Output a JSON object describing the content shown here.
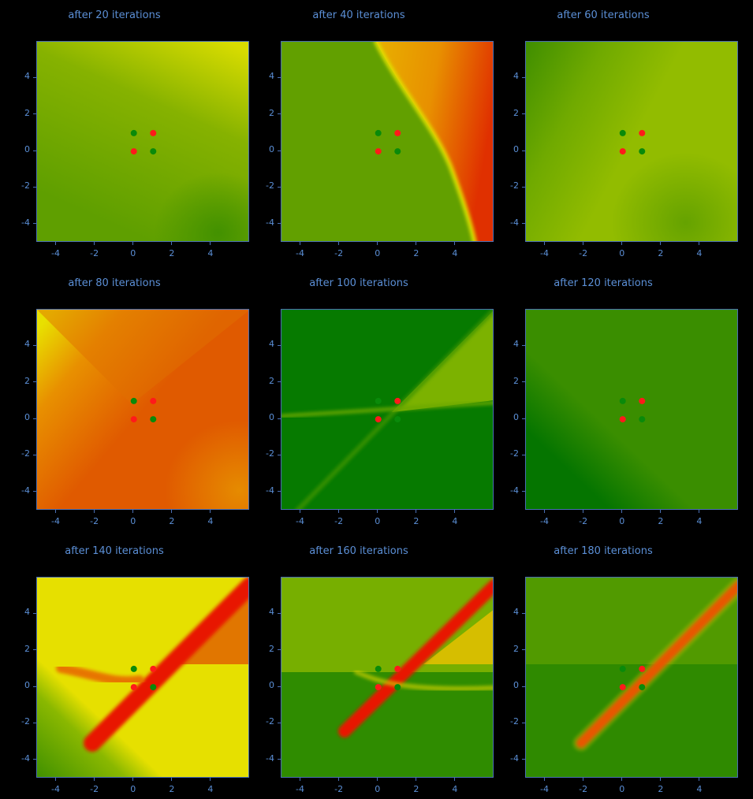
{
  "chart_data": [
    {
      "type": "heatmap",
      "title": "after 20 iterations",
      "xlim": [
        -5,
        6
      ],
      "ylim": [
        -5,
        6
      ],
      "x_ticks": [
        -4,
        -2,
        0,
        2,
        4
      ],
      "y_ticks": [
        -4,
        -2,
        0,
        2,
        4
      ],
      "points": [
        {
          "x": 0,
          "y": 0,
          "class": "red"
        },
        {
          "x": 1,
          "y": 1,
          "class": "red"
        },
        {
          "x": 0,
          "y": 1,
          "class": "green"
        },
        {
          "x": 1,
          "y": 0,
          "class": "green"
        }
      ]
    },
    {
      "type": "heatmap",
      "title": "after 40 iterations",
      "xlim": [
        -5,
        6
      ],
      "ylim": [
        -5,
        6
      ],
      "x_ticks": [
        -4,
        -2,
        0,
        2,
        4
      ],
      "y_ticks": [
        -4,
        -2,
        0,
        2,
        4
      ],
      "points": [
        {
          "x": 0,
          "y": 0,
          "class": "red"
        },
        {
          "x": 1,
          "y": 1,
          "class": "red"
        },
        {
          "x": 0,
          "y": 1,
          "class": "green"
        },
        {
          "x": 1,
          "y": 0,
          "class": "green"
        }
      ]
    },
    {
      "type": "heatmap",
      "title": "after 60 iterations",
      "xlim": [
        -5,
        6
      ],
      "ylim": [
        -5,
        6
      ],
      "x_ticks": [
        -4,
        -2,
        0,
        2,
        4
      ],
      "y_ticks": [
        -4,
        -2,
        0,
        2,
        4
      ],
      "points": [
        {
          "x": 0,
          "y": 0,
          "class": "red"
        },
        {
          "x": 1,
          "y": 1,
          "class": "red"
        },
        {
          "x": 0,
          "y": 1,
          "class": "green"
        },
        {
          "x": 1,
          "y": 0,
          "class": "green"
        }
      ]
    },
    {
      "type": "heatmap",
      "title": "after 80 iterations",
      "xlim": [
        -5,
        6
      ],
      "ylim": [
        -5,
        6
      ],
      "x_ticks": [
        -4,
        -2,
        0,
        2,
        4
      ],
      "y_ticks": [
        -4,
        -2,
        0,
        2,
        4
      ],
      "points": [
        {
          "x": 0,
          "y": 0,
          "class": "red"
        },
        {
          "x": 1,
          "y": 1,
          "class": "red"
        },
        {
          "x": 0,
          "y": 1,
          "class": "green"
        },
        {
          "x": 1,
          "y": 0,
          "class": "green"
        }
      ]
    },
    {
      "type": "heatmap",
      "title": "after 100 iterations",
      "xlim": [
        -5,
        6
      ],
      "ylim": [
        -5,
        6
      ],
      "x_ticks": [
        -4,
        -2,
        0,
        2,
        4
      ],
      "y_ticks": [
        -4,
        -2,
        0,
        2,
        4
      ],
      "points": [
        {
          "x": 0,
          "y": 0,
          "class": "red"
        },
        {
          "x": 1,
          "y": 1,
          "class": "red"
        },
        {
          "x": 0,
          "y": 1,
          "class": "green"
        },
        {
          "x": 1,
          "y": 0,
          "class": "green"
        }
      ]
    },
    {
      "type": "heatmap",
      "title": "after 120 iterations",
      "xlim": [
        -5,
        6
      ],
      "ylim": [
        -5,
        6
      ],
      "x_ticks": [
        -4,
        -2,
        0,
        2,
        4
      ],
      "y_ticks": [
        -4,
        -2,
        0,
        2,
        4
      ],
      "points": [
        {
          "x": 0,
          "y": 0,
          "class": "red"
        },
        {
          "x": 1,
          "y": 1,
          "class": "red"
        },
        {
          "x": 0,
          "y": 1,
          "class": "green"
        },
        {
          "x": 1,
          "y": 0,
          "class": "green"
        }
      ]
    },
    {
      "type": "heatmap",
      "title": "after 140 iterations",
      "xlim": [
        -5,
        6
      ],
      "ylim": [
        -5,
        6
      ],
      "x_ticks": [
        -4,
        -2,
        0,
        2,
        4
      ],
      "y_ticks": [
        -4,
        -2,
        0,
        2,
        4
      ],
      "points": [
        {
          "x": 0,
          "y": 0,
          "class": "red"
        },
        {
          "x": 1,
          "y": 1,
          "class": "red"
        },
        {
          "x": 0,
          "y": 1,
          "class": "green"
        },
        {
          "x": 1,
          "y": 0,
          "class": "green"
        }
      ]
    },
    {
      "type": "heatmap",
      "title": "after 160 iterations",
      "xlim": [
        -5,
        6
      ],
      "ylim": [
        -5,
        6
      ],
      "x_ticks": [
        -4,
        -2,
        0,
        2,
        4
      ],
      "y_ticks": [
        -4,
        -2,
        0,
        2,
        4
      ],
      "points": [
        {
          "x": 0,
          "y": 0,
          "class": "red"
        },
        {
          "x": 1,
          "y": 1,
          "class": "red"
        },
        {
          "x": 0,
          "y": 1,
          "class": "green"
        },
        {
          "x": 1,
          "y": 0,
          "class": "green"
        }
      ]
    },
    {
      "type": "heatmap",
      "title": "after 180 iterations",
      "xlim": [
        -5,
        6
      ],
      "ylim": [
        -5,
        6
      ],
      "x_ticks": [
        -4,
        -2,
        0,
        2,
        4
      ],
      "y_ticks": [
        -4,
        -2,
        0,
        2,
        4
      ],
      "points": [
        {
          "x": 0,
          "y": 0,
          "class": "red"
        },
        {
          "x": 1,
          "y": 1,
          "class": "red"
        },
        {
          "x": 0,
          "y": 1,
          "class": "green"
        },
        {
          "x": 1,
          "y": 0,
          "class": "green"
        }
      ]
    }
  ],
  "colors": {
    "red_point": "#ff1a1a",
    "green_point": "#0a8a0a",
    "axis": "#4a6fb5",
    "tick_text": "#5b8fd6",
    "background": "#000000"
  }
}
